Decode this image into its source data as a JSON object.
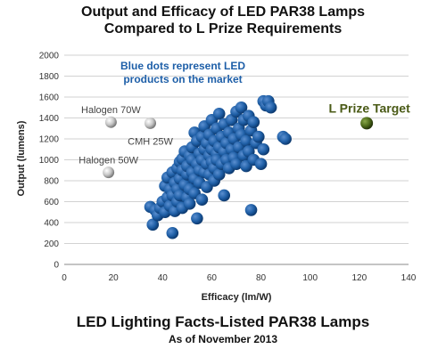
{
  "chart_data": {
    "type": "scatter",
    "title": "Output and Efficacy of LED PAR38 Lamps",
    "subtitle": "Compared to L Prize Requirements",
    "xlabel": "Efficacy (lm/W)",
    "ylabel": "Output (lumens)",
    "xlim": [
      0,
      140
    ],
    "ylim": [
      0,
      2000
    ],
    "x_ticks": [
      "0",
      "20",
      "40",
      "60",
      "80",
      "100",
      "120",
      "140"
    ],
    "y_ticks": [
      "0",
      "200",
      "400",
      "600",
      "800",
      "1000",
      "1200",
      "1400",
      "1600",
      "1800",
      "2000"
    ],
    "grid": "horizontal",
    "annotation": [
      "Blue dots represent LED",
      "products on the market"
    ],
    "caption": "LED Lighting Facts-Listed PAR38 Lamps",
    "caption_sub": "As of November 2013",
    "colors": {
      "led": "#1f5fa6",
      "reference": "#b8b8b8",
      "target": "#4e6b1a"
    },
    "reference_points": [
      {
        "label": "Halogen 70W",
        "x": 19,
        "y": 1360
      },
      {
        "label": "CMH 25W",
        "x": 35,
        "y": 1350
      },
      {
        "label": "Halogen 50W",
        "x": 18,
        "y": 880
      }
    ],
    "target_point": {
      "label": "L Prize Target",
      "x": 123,
      "y": 1350
    },
    "led_points": [
      [
        35,
        550
      ],
      [
        36,
        380
      ],
      [
        37,
        520
      ],
      [
        38,
        470
      ],
      [
        39,
        540
      ],
      [
        40,
        600
      ],
      [
        41,
        750
      ],
      [
        41,
        500
      ],
      [
        42,
        640
      ],
      [
        42,
        830
      ],
      [
        43,
        560
      ],
      [
        43,
        720
      ],
      [
        44,
        880
      ],
      [
        44,
        660
      ],
      [
        44,
        300
      ],
      [
        45,
        510
      ],
      [
        45,
        780
      ],
      [
        46,
        920
      ],
      [
        46,
        600
      ],
      [
        46,
        720
      ],
      [
        47,
        820
      ],
      [
        47,
        980
      ],
      [
        47,
        660
      ],
      [
        48,
        540
      ],
      [
        48,
        900
      ],
      [
        48,
        1010
      ],
      [
        49,
        760
      ],
      [
        49,
        1080
      ],
      [
        50,
        640
      ],
      [
        50,
        860
      ],
      [
        50,
        940
      ],
      [
        51,
        1040
      ],
      [
        51,
        720
      ],
      [
        51,
        580
      ],
      [
        52,
        880
      ],
      [
        52,
        1120
      ],
      [
        52,
        1000
      ],
      [
        53,
        1260
      ],
      [
        53,
        820
      ],
      [
        53,
        680
      ],
      [
        54,
        960
      ],
      [
        54,
        1180
      ],
      [
        54,
        440
      ],
      [
        55,
        900
      ],
      [
        55,
        1060
      ],
      [
        55,
        780
      ],
      [
        56,
        1220
      ],
      [
        56,
        1000
      ],
      [
        56,
        620
      ],
      [
        57,
        1100
      ],
      [
        57,
        880
      ],
      [
        57,
        1320
      ],
      [
        58,
        960
      ],
      [
        58,
        740
      ],
      [
        58,
        1160
      ],
      [
        59,
        1040
      ],
      [
        59,
        860
      ],
      [
        59,
        1240
      ],
      [
        60,
        1380
      ],
      [
        60,
        980
      ],
      [
        60,
        1100
      ],
      [
        61,
        920
      ],
      [
        61,
        1180
      ],
      [
        61,
        800
      ],
      [
        62,
        1060
      ],
      [
        62,
        1300
      ],
      [
        62,
        1000
      ],
      [
        63,
        1440
      ],
      [
        63,
        1120
      ],
      [
        63,
        860
      ],
      [
        64,
        1220
      ],
      [
        64,
        960
      ],
      [
        65,
        1080
      ],
      [
        65,
        1340
      ],
      [
        65,
        660
      ],
      [
        66,
        1160
      ],
      [
        66,
        1000
      ],
      [
        67,
        1260
      ],
      [
        67,
        920
      ],
      [
        68,
        1100
      ],
      [
        68,
        1380
      ],
      [
        69,
        1200
      ],
      [
        69,
        1020
      ],
      [
        70,
        1460
      ],
      [
        70,
        960
      ],
      [
        71,
        1300
      ],
      [
        71,
        1120
      ],
      [
        72,
        1500
      ],
      [
        72,
        1240
      ],
      [
        73,
        1040
      ],
      [
        73,
        1380
      ],
      [
        74,
        1180
      ],
      [
        74,
        940
      ],
      [
        75,
        1420
      ],
      [
        75,
        1080
      ],
      [
        76,
        1280
      ],
      [
        76,
        520
      ],
      [
        77,
        1000
      ],
      [
        77,
        1360
      ],
      [
        78,
        1160
      ],
      [
        79,
        1220
      ],
      [
        80,
        960
      ],
      [
        81,
        1100
      ],
      [
        81,
        1560
      ],
      [
        82,
        1520
      ],
      [
        83,
        1560
      ],
      [
        84,
        1500
      ],
      [
        89,
        1220
      ],
      [
        90,
        1200
      ]
    ]
  }
}
